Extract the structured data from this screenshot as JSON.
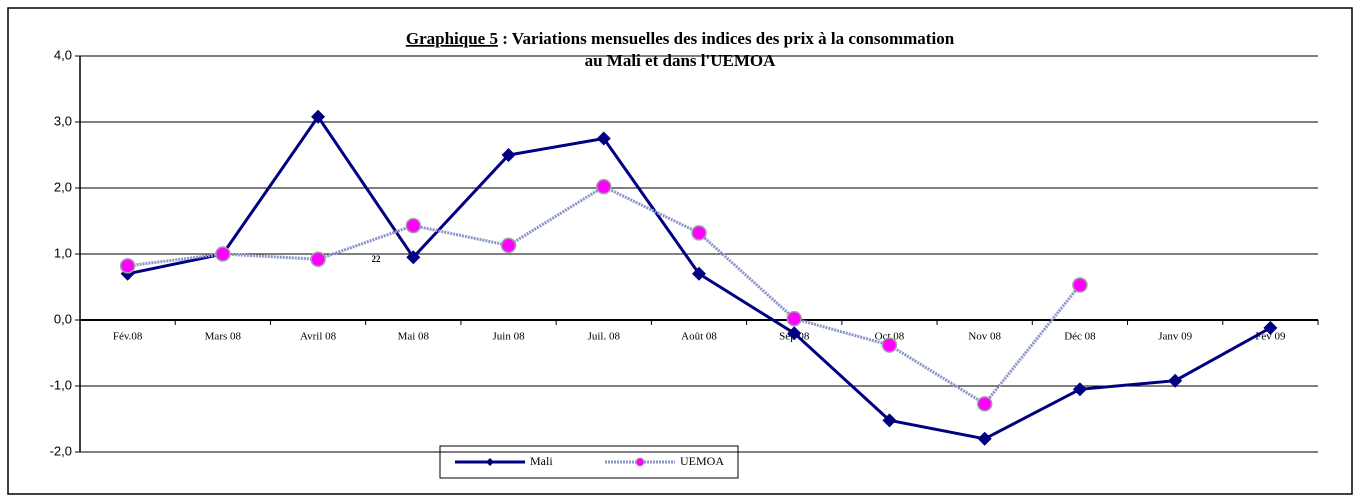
{
  "chart_data": {
    "type": "line",
    "title_label": "Graphique 5",
    "title": [
      " : Variations mensuelles des indices des prix à la consommation",
      "au Mali et dans l'UEMOA"
    ],
    "annotation": "22",
    "categories": [
      "Fév.08",
      "Mars 08",
      "Avril 08",
      "Mai 08",
      "Juin 08",
      "Juil. 08",
      "Août 08",
      "Sep 08",
      "Oct 08",
      "Nov 08",
      "Déc 08",
      "Janv 09",
      "Fev 09"
    ],
    "series": [
      {
        "name": "Mali",
        "color": "#000080",
        "values": [
          0.7,
          1.0,
          3.08,
          0.95,
          2.5,
          2.75,
          0.7,
          -0.2,
          -1.52,
          -1.8,
          -1.05,
          -0.92,
          -0.12
        ]
      },
      {
        "name": "UEMOA",
        "color": "#ff00ff",
        "values": [
          0.82,
          1.0,
          0.92,
          1.43,
          1.13,
          2.02,
          1.32,
          0.02,
          -0.38,
          -1.27,
          0.53,
          null,
          null
        ]
      }
    ],
    "ylim": [
      -2,
      4
    ],
    "yticks": [
      {
        "value": -2,
        "label": "-2,0"
      },
      {
        "value": -1,
        "label": "-1,0"
      },
      {
        "value": 0,
        "label": "0,0"
      },
      {
        "value": 1,
        "label": "1,0"
      },
      {
        "value": 2,
        "label": "2,0"
      },
      {
        "value": 3,
        "label": "3,0"
      },
      {
        "value": 4,
        "label": "4,0"
      }
    ],
    "grid": true
  }
}
